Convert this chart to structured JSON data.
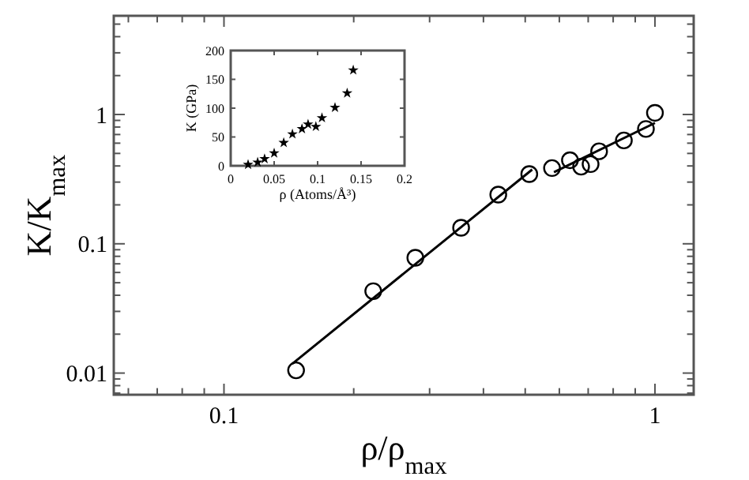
{
  "chart_data": [
    {
      "type": "scatter",
      "xlabel": "ρ/ρ$_{max}$",
      "ylabel": "K/K$_{max}$",
      "log": "xy",
      "grid": false,
      "xlim": [
        0.0555,
        1.23
      ],
      "ylim": [
        0.0068,
        5.8
      ],
      "xticks": [
        {
          "value": 0.06,
          "label": null
        },
        {
          "value": 0.07,
          "label": null
        },
        {
          "value": 0.08,
          "label": null
        },
        {
          "value": 0.09,
          "label": null
        },
        0.1,
        {
          "value": 0.2,
          "label": null
        },
        {
          "value": 0.3,
          "label": null
        },
        {
          "value": 0.4,
          "label": null
        },
        {
          "value": 0.5,
          "label": null
        },
        {
          "value": 0.6,
          "label": null
        },
        {
          "value": 0.7,
          "label": null
        },
        {
          "value": 0.8,
          "label": null
        },
        {
          "value": 0.9,
          "label": null
        },
        1
      ],
      "yticks": [
        {
          "value": 0.007,
          "label": null
        },
        {
          "value": 0.008,
          "label": null
        },
        {
          "value": 0.009,
          "label": null
        },
        0.01,
        {
          "value": 0.02,
          "label": null
        },
        {
          "value": 0.03,
          "label": null
        },
        {
          "value": 0.04,
          "label": null
        },
        {
          "value": 0.05,
          "label": null
        },
        {
          "value": 0.06,
          "label": null
        },
        {
          "value": 0.07,
          "label": null
        },
        {
          "value": 0.08,
          "label": null
        },
        {
          "value": 0.09,
          "label": null
        },
        0.1,
        {
          "value": 0.2,
          "label": null
        },
        {
          "value": 0.3,
          "label": null
        },
        {
          "value": 0.4,
          "label": null
        },
        {
          "value": 0.5,
          "label": null
        },
        {
          "value": 0.6,
          "label": null
        },
        {
          "value": 0.7,
          "label": null
        },
        {
          "value": 0.8,
          "label": null
        },
        {
          "value": 0.9,
          "label": null
        },
        1,
        {
          "value": 2,
          "label": null
        },
        {
          "value": 3,
          "label": null
        },
        {
          "value": 4,
          "label": null
        },
        {
          "value": 5,
          "label": null
        }
      ],
      "series": [
        {
          "color": "#000000",
          "marker": "circle",
          "x": [
            0.147,
            0.222,
            0.278,
            0.355,
            0.433,
            0.511,
            0.577,
            0.635,
            0.674,
            0.709,
            0.742,
            0.847,
            0.953,
            1.0
          ],
          "values": [
            0.0105,
            0.043,
            0.078,
            0.133,
            0.24,
            0.346,
            0.385,
            0.443,
            0.395,
            0.413,
            0.519,
            0.63,
            0.773,
            1.03
          ]
        },
        {
          "type": "line",
          "color": "#000000",
          "marker": "none",
          "x": [
            0.144,
            0.519
          ],
          "values": [
            0.0118,
            0.375
          ]
        },
        {
          "type": "line",
          "color": "#000000",
          "marker": "none",
          "x": [
            0.583,
            1.0
          ],
          "values": [
            0.358,
            0.86
          ]
        }
      ]
    },
    {
      "type": "scatter",
      "xlabel": "ρ (Atoms/Å³)",
      "ylabel": "K (GPa)",
      "grid": false,
      "marker": "star",
      "xlim": [
        0,
        0.2
      ],
      "ylim": [
        0,
        200
      ],
      "xticks": [
        0,
        0.05,
        0.1,
        0.15,
        0.2
      ],
      "yticks": [
        0,
        50,
        100,
        150,
        200
      ],
      "series": [
        {
          "color": "#000000",
          "x": [
            0.02,
            0.031,
            0.039,
            0.05,
            0.061,
            0.071,
            0.082,
            0.089,
            0.098,
            0.105,
            0.12,
            0.134,
            0.141
          ],
          "values": [
            2,
            6,
            12,
            22,
            40,
            55,
            64,
            72,
            68,
            83,
            101,
            126,
            166
          ]
        }
      ]
    }
  ]
}
